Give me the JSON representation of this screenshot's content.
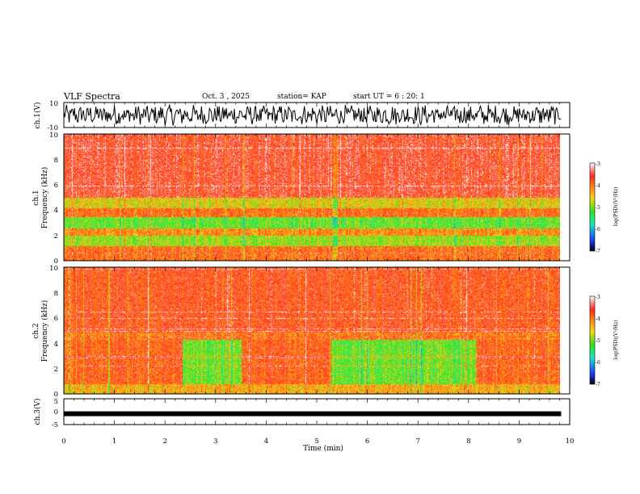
{
  "header": {
    "title": "VLF Spectra",
    "date": "Oct. 3 , 2025",
    "station": "station= KAP",
    "start": "start UT = 6 : 20: 1"
  },
  "chart_data": [
    {
      "id": "ch1_waveform",
      "type": "line",
      "ylabel": "ch.1(V)",
      "ylim": [
        -10,
        10
      ],
      "yticks": [
        "10",
        "-10"
      ],
      "xlim": [
        0,
        10
      ],
      "x_data_end": 9.83
    },
    {
      "id": "ch1_spectrogram",
      "type": "heatmap",
      "ylabel": "ch.1",
      "ylabel2": "Frequency (kHz)",
      "ylim": [
        0,
        10
      ],
      "yticks": [
        "0",
        "2",
        "4",
        "6",
        "8",
        "10"
      ],
      "xlim": [
        0,
        10
      ],
      "colorbar": {
        "label": "log(PSD)(V²/Hz)",
        "range": [
          -7,
          -3
        ],
        "ticks": [
          "-3",
          "-4",
          "-5",
          "-6",
          "-7"
        ]
      },
      "bands_khz": [
        {
          "from": 5.0,
          "to": 10.0,
          "level": -3.6
        },
        {
          "from": 4.2,
          "to": 5.0,
          "level": -4.6
        },
        {
          "from": 3.5,
          "to": 4.2,
          "level": -4.0
        },
        {
          "from": 2.6,
          "to": 3.5,
          "level": -5.1
        },
        {
          "from": 2.0,
          "to": 2.6,
          "level": -4.2
        },
        {
          "from": 1.2,
          "to": 2.0,
          "level": -4.9
        },
        {
          "from": 0.0,
          "to": 1.2,
          "level": -4.0
        }
      ]
    },
    {
      "id": "ch2_spectrogram",
      "type": "heatmap",
      "ylabel": "ch.2",
      "ylabel2": "Frequency (kHz)",
      "ylim": [
        0,
        10
      ],
      "yticks": [
        "0",
        "2",
        "4",
        "6",
        "8",
        "10"
      ],
      "xlim": [
        0,
        10
      ],
      "colorbar": {
        "label": "log(PSD)(V²/Hz)",
        "range": [
          -7,
          -3
        ],
        "ticks": [
          "-3",
          "-4",
          "-5",
          "-6",
          "-7"
        ]
      },
      "quiet_intervals_min": [
        [
          2.38,
          3.58
        ],
        [
          5.38,
          8.3
        ]
      ],
      "quiet_band_khz": [
        0.8,
        4.3
      ]
    },
    {
      "id": "ch3_waveform",
      "type": "line",
      "ylabel": "ch.3(V)",
      "ylim": [
        -5,
        5
      ],
      "yticks": [
        "5",
        "0",
        "-5"
      ],
      "xlim": [
        0,
        10
      ],
      "level_v": -0.8
    }
  ],
  "xaxis": {
    "label": "Time (min)",
    "ticks": [
      "0",
      "1",
      "2",
      "3",
      "4",
      "5",
      "6",
      "7",
      "8",
      "9",
      "10"
    ]
  },
  "colors": {
    "red": "#ff2a1a",
    "orange": "#ff8c1a",
    "yellow": "#ffd21a",
    "green": "#33e61a",
    "cyan": "#1ae6c8",
    "blue": "#1a3cff",
    "black": "#000000",
    "white": "#ffffff"
  }
}
